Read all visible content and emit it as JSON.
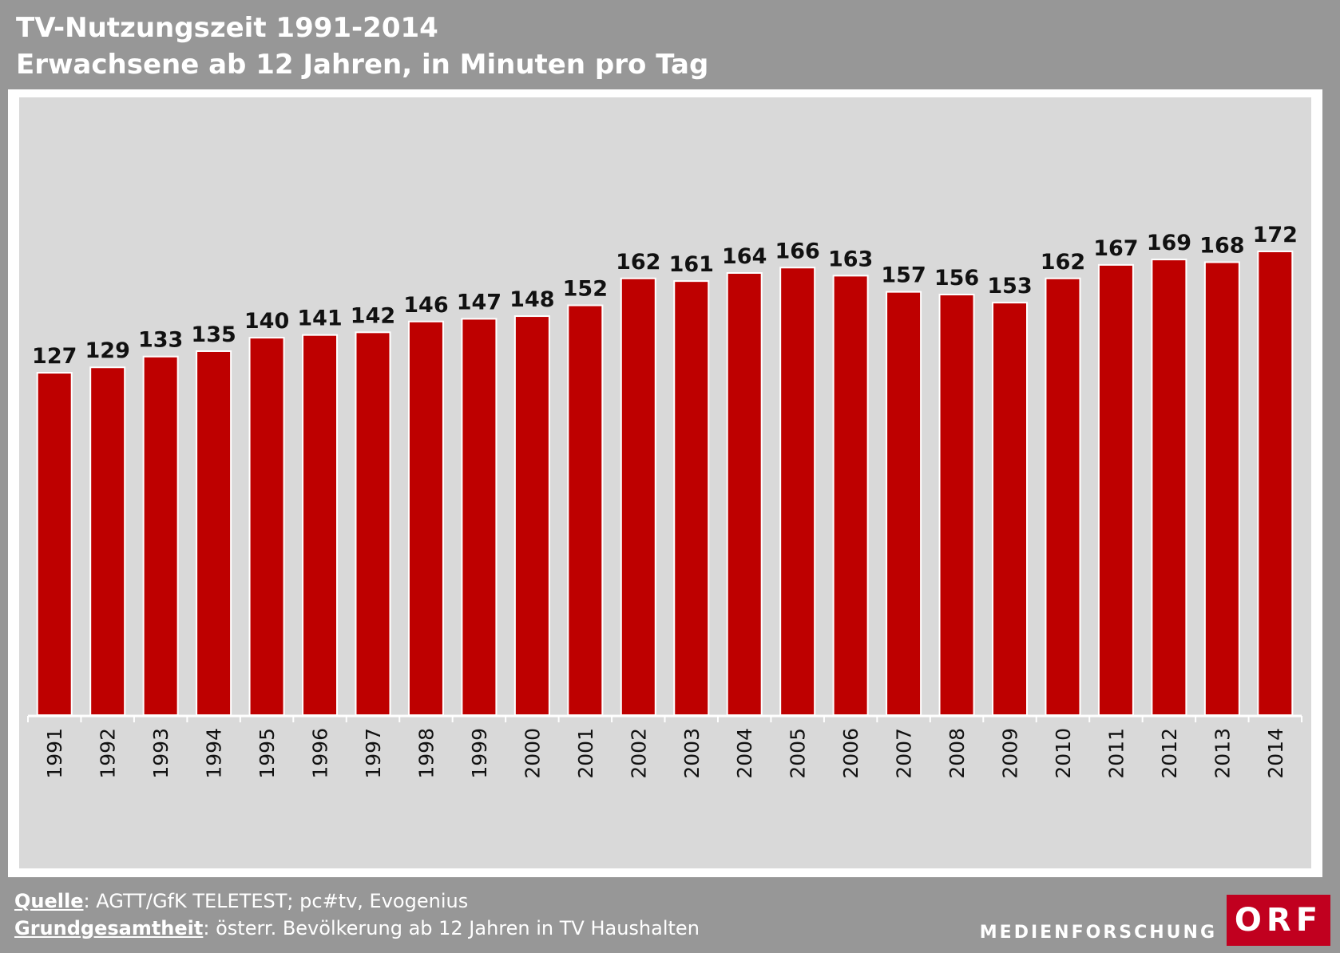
{
  "header": {
    "title": "TV-Nutzungszeit 1991-2014",
    "subtitle": "Erwachsene ab 12 Jahren, in Minuten pro Tag"
  },
  "colors": {
    "page_background": "#979797",
    "plot_background": "#d9d9d9",
    "bar": "#be0000",
    "orf_red": "#c1001f"
  },
  "chart_data": {
    "type": "bar",
    "title": "TV-Nutzungszeit 1991-2014",
    "subtitle": "Erwachsene ab 12 Jahren, in Minuten pro Tag",
    "xlabel": "",
    "ylabel": "",
    "categories": [
      "1991",
      "1992",
      "1993",
      "1994",
      "1995",
      "1996",
      "1997",
      "1998",
      "1999",
      "2000",
      "2001",
      "2002",
      "2003",
      "2004",
      "2005",
      "2006",
      "2007",
      "2008",
      "2009",
      "2010",
      "2011",
      "2012",
      "2013",
      "2014"
    ],
    "values": [
      127,
      129,
      133,
      135,
      140,
      141,
      142,
      146,
      147,
      148,
      152,
      162,
      161,
      164,
      166,
      163,
      157,
      156,
      153,
      162,
      167,
      169,
      168,
      172
    ],
    "data_labels": true,
    "y_axis_visible": false,
    "grid": false,
    "legend": "none",
    "x_tick_label_rotation": "vertical"
  },
  "footer": {
    "source_label": "Quelle",
    "source_text": ": AGTT/GfK TELETEST; pc#tv, Evogenius",
    "population_label": "Grundgesamtheit",
    "population_text": ": österr. Bevölkerung ab 12 Jahren in TV Haushalten"
  },
  "branding": {
    "department": "MEDIENFORSCHUNG",
    "logo_text": "ORF"
  }
}
